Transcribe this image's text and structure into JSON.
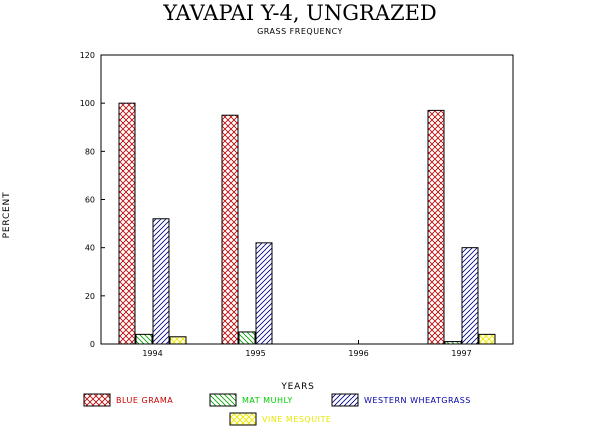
{
  "chart_data": {
    "type": "bar",
    "title": "YAVAPAI Y-4, UNGRAZED",
    "subtitle": "GRASS FREQUENCY",
    "xlabel": "YEARS",
    "ylabel": "PERCENT",
    "categories": [
      "1994",
      "1995",
      "1996",
      "1997"
    ],
    "ylim": [
      0,
      120
    ],
    "yticks": [
      0,
      20,
      40,
      60,
      80,
      100,
      120
    ],
    "legend_placement": "bottom",
    "series": [
      {
        "name": "BLUE GRAMA",
        "values": [
          100,
          95,
          0,
          97
        ],
        "color": "#c00000",
        "text_color": "#cc0000",
        "pattern": "crosshatch"
      },
      {
        "name": "MAT MUHLY",
        "values": [
          4,
          5,
          0,
          1
        ],
        "color": "#00a000",
        "text_color": "#00cc00",
        "pattern": "diag-back"
      },
      {
        "name": "WESTERN WHEATGRASS",
        "values": [
          52,
          42,
          0,
          40
        ],
        "color": "#000080",
        "text_color": "#0000aa",
        "pattern": "diag-fwd"
      },
      {
        "name": "VINE MESQUITE",
        "values": [
          3,
          0,
          0,
          4
        ],
        "color": "#e8e800",
        "text_color": "#e8e800",
        "pattern": "crosshatch"
      }
    ]
  }
}
